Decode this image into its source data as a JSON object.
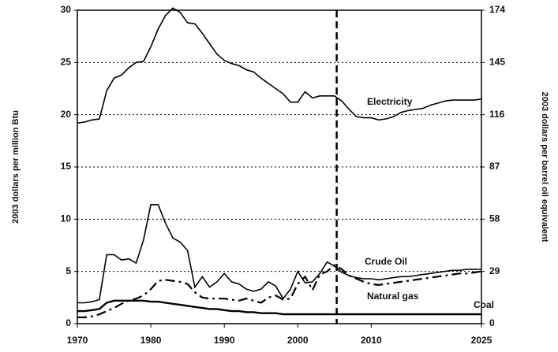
{
  "chart_data": {
    "type": "line",
    "ylabel": "2003 dollars per million Btu",
    "y2label": "2003 dollars per barrel oil equivalent",
    "x": [
      1970,
      1971,
      1972,
      1973,
      1974,
      1975,
      1976,
      1977,
      1978,
      1979,
      1980,
      1981,
      1982,
      1983,
      1984,
      1985,
      1986,
      1987,
      1988,
      1989,
      1990,
      1991,
      1992,
      1993,
      1994,
      1995,
      1996,
      1997,
      1998,
      1999,
      2000,
      2001,
      2002,
      2003,
      2004,
      2005,
      2006,
      2007,
      2008,
      2009,
      2010,
      2011,
      2012,
      2013,
      2014,
      2015,
      2016,
      2017,
      2018,
      2019,
      2020,
      2021,
      2022,
      2023,
      2024,
      2025
    ],
    "series": [
      {
        "name": "Electricity",
        "color": "#000000",
        "style": "solid",
        "values": [
          19.2,
          19.3,
          19.5,
          19.6,
          22.3,
          23.5,
          23.8,
          24.5,
          25.0,
          25.1,
          26.5,
          28.2,
          29.5,
          30.2,
          29.8,
          28.8,
          28.7,
          27.8,
          26.8,
          25.8,
          25.2,
          24.9,
          24.7,
          24.3,
          24.1,
          23.5,
          23.0,
          22.5,
          22.0,
          21.2,
          21.2,
          22.2,
          21.6,
          21.8,
          21.8,
          21.8,
          21.3,
          20.5,
          19.8,
          19.7,
          19.7,
          19.5,
          19.6,
          19.8,
          20.2,
          20.4,
          20.5,
          20.6,
          20.9,
          21.1,
          21.3,
          21.4,
          21.4,
          21.4,
          21.4,
          21.5
        ]
      },
      {
        "name": "Crude Oil",
        "color": "#000000",
        "style": "solid",
        "values": [
          2.0,
          2.0,
          2.1,
          2.3,
          6.6,
          6.6,
          6.1,
          6.2,
          5.8,
          8.0,
          11.4,
          11.4,
          9.6,
          8.2,
          7.8,
          7.0,
          3.5,
          4.5,
          3.5,
          4.0,
          4.8,
          4.0,
          3.8,
          3.3,
          3.1,
          3.3,
          4.0,
          3.6,
          2.4,
          3.3,
          5.0,
          3.9,
          4.0,
          4.8,
          5.9,
          5.5,
          4.9,
          4.6,
          4.4,
          4.3,
          4.3,
          4.2,
          4.3,
          4.4,
          4.5,
          4.5,
          4.6,
          4.7,
          4.8,
          4.9,
          5.0,
          5.1,
          5.1,
          5.2,
          5.2,
          5.2
        ]
      },
      {
        "name": "Natural gas",
        "color": "#000000",
        "style": "dashdot",
        "values": [
          0.6,
          0.6,
          0.7,
          0.9,
          1.2,
          1.5,
          1.9,
          2.2,
          2.4,
          2.7,
          3.3,
          4.1,
          4.2,
          4.1,
          4.0,
          3.8,
          3.0,
          2.5,
          2.4,
          2.4,
          2.4,
          2.3,
          2.2,
          2.4,
          2.2,
          2.0,
          2.5,
          2.7,
          2.3,
          2.4,
          3.8,
          4.5,
          3.2,
          4.7,
          5.0,
          5.6,
          5.2,
          4.6,
          4.3,
          4.0,
          3.8,
          3.7,
          3.8,
          3.9,
          4.0,
          4.1,
          4.2,
          4.3,
          4.4,
          4.5,
          4.6,
          4.7,
          4.8,
          4.8,
          4.9,
          5.0
        ]
      },
      {
        "name": "Coal",
        "color": "#000000",
        "style": "thick",
        "values": [
          1.2,
          1.2,
          1.3,
          1.4,
          2.0,
          2.2,
          2.2,
          2.2,
          2.2,
          2.2,
          2.1,
          2.1,
          2.0,
          1.9,
          1.8,
          1.7,
          1.6,
          1.5,
          1.4,
          1.4,
          1.3,
          1.2,
          1.2,
          1.1,
          1.1,
          1.0,
          1.0,
          1.0,
          0.9,
          0.9,
          0.9,
          0.9,
          0.9,
          0.9,
          0.9,
          0.9,
          0.9,
          0.9,
          0.9,
          0.9,
          0.9,
          0.9,
          0.9,
          0.9,
          0.9,
          0.9,
          0.9,
          0.9,
          0.9,
          0.9,
          0.9,
          0.9,
          0.9,
          0.9,
          0.9,
          0.9
        ]
      }
    ],
    "xlim": [
      1970,
      2025
    ],
    "xticks": [
      1970,
      1980,
      1990,
      2000,
      2010,
      2025
    ],
    "ylim": [
      0,
      30
    ],
    "yticks": [
      0,
      5,
      10,
      15,
      20,
      25,
      30
    ],
    "y2lim": [
      0,
      174
    ],
    "y2ticks": [
      0,
      29,
      58,
      87,
      116,
      145,
      174
    ],
    "vline": 2005.3,
    "grid": true
  }
}
